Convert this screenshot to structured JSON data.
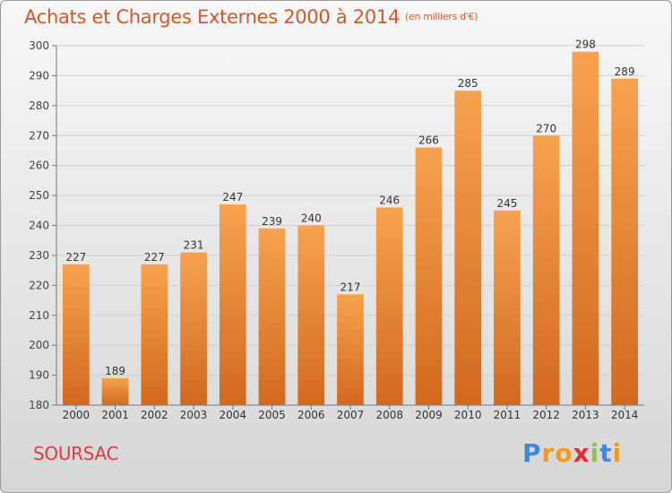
{
  "title": "Achats et Charges Externes 2000 à 2014",
  "subtitle": "(en milliers d'€)",
  "commune": "SOURSAC",
  "logo": {
    "letters": [
      "P",
      "r",
      "o",
      "x",
      "i",
      "t",
      "i"
    ],
    "colors": [
      "#3f8ad8",
      "#f29a1e",
      "#f29a1e",
      "#e02f2f",
      "#8cc63f",
      "#3f8ad8",
      "#f29a1e"
    ]
  },
  "colors": {
    "title": "#d9542b",
    "bar_top": "#f7a24f",
    "bar_bottom": "#d2691e",
    "commune": "#e0393e"
  },
  "chart_data": {
    "type": "bar",
    "categories": [
      "2000",
      "2001",
      "2002",
      "2003",
      "2004",
      "2005",
      "2006",
      "2007",
      "2008",
      "2009",
      "2010",
      "2011",
      "2012",
      "2013",
      "2014"
    ],
    "values": [
      227,
      189,
      227,
      231,
      247,
      239,
      240,
      217,
      246,
      266,
      285,
      245,
      270,
      298,
      289
    ],
    "ylim": [
      180,
      300
    ],
    "yticks": [
      180,
      190,
      200,
      210,
      220,
      230,
      240,
      250,
      260,
      270,
      280,
      290,
      300
    ],
    "grid": true,
    "xlabel": "",
    "ylabel": ""
  }
}
